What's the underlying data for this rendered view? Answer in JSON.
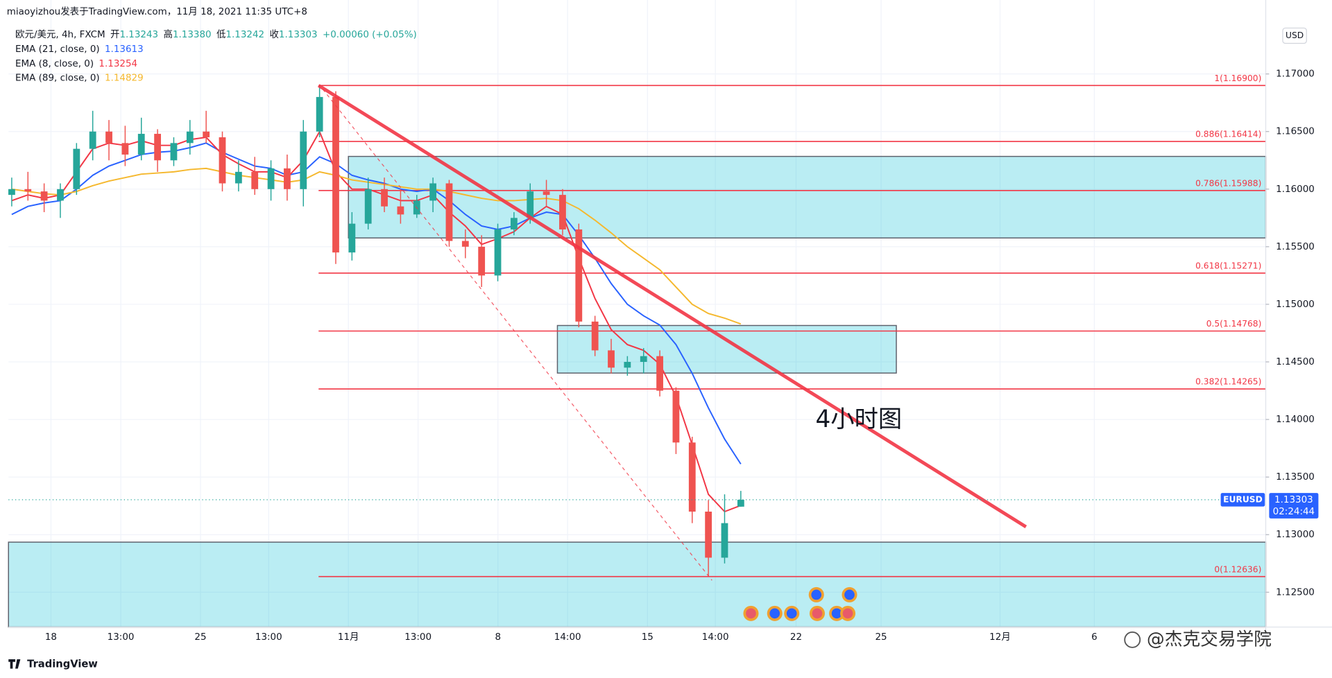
{
  "header": {
    "byline": "miaoyizhou发表于TradingView.com，11月 18, 2021 11:35 UTC+8",
    "symbol": "欧元/美元, 4h, FXCM",
    "ohlc": [
      {
        "label": "开",
        "value": "1.13243"
      },
      {
        "label": "高",
        "value": "1.13380"
      },
      {
        "label": "低",
        "value": "1.13242"
      },
      {
        "label": "收",
        "value": "1.13303"
      }
    ],
    "change": "+0.00060 (+0.05%)",
    "currency": "USD"
  },
  "footer": {
    "brand": "TradingView",
    "watermark": "@杰克交易学院"
  },
  "annotation": "4小时图",
  "chart_data": {
    "type": "candlestick",
    "xlim": [
      -0.2,
      77.4
    ],
    "xticks": [
      {
        "value": 2.42,
        "label": "18"
      },
      {
        "value": 6.73,
        "label": "13:00"
      },
      {
        "value": 11.65,
        "label": "25"
      },
      {
        "value": 15.86,
        "label": "13:00"
      },
      {
        "value": 20.78,
        "label": "11月"
      },
      {
        "value": 25.08,
        "label": "13:00"
      },
      {
        "value": 30.01,
        "label": "8"
      },
      {
        "value": 34.31,
        "label": "14:00"
      },
      {
        "value": 39.24,
        "label": "15"
      },
      {
        "value": 43.43,
        "label": "14:00"
      },
      {
        "value": 48.41,
        "label": "22"
      },
      {
        "value": 53.66,
        "label": "25"
      },
      {
        "value": 61.0,
        "label": "12月"
      },
      {
        "value": 66.82,
        "label": "6"
      }
    ],
    "ylim": [
      1.12198,
      1.17642
    ],
    "yticks": [
      {
        "value": 1.17,
        "label": "1.17000"
      },
      {
        "value": 1.165,
        "label": "1.16500"
      },
      {
        "value": 1.16,
        "label": "1.16000"
      },
      {
        "value": 1.155,
        "label": "1.15500"
      },
      {
        "value": 1.15,
        "label": "1.15000"
      },
      {
        "value": 1.145,
        "label": "1.14500"
      },
      {
        "value": 1.14,
        "label": "1.14000"
      },
      {
        "value": 1.135,
        "label": "1.13500"
      },
      {
        "value": 1.13,
        "label": "1.13000"
      },
      {
        "value": 1.125,
        "label": "1.12500"
      }
    ],
    "grid": true,
    "series": [
      {
        "name": "EURUSD",
        "up_color": "#26a69a",
        "down_color": "#ef5350",
        "open": [
          1.1595,
          1.16,
          1.1598,
          1.159,
          1.16,
          1.1635,
          1.165,
          1.164,
          1.163,
          1.1648,
          1.1625,
          1.164,
          1.165,
          1.1645,
          1.1605,
          1.1615,
          1.16,
          1.1618,
          1.16,
          1.165,
          1.168,
          1.1545,
          1.157,
          1.16,
          1.1585,
          1.1578,
          1.159,
          1.1605,
          1.1555,
          1.155,
          1.1525,
          1.1565,
          1.1575,
          1.1598,
          1.1595,
          1.1565,
          1.1485,
          1.146,
          1.1445,
          1.145,
          1.1455,
          1.1425,
          1.138,
          1.132,
          1.128,
          1.13243
        ],
        "high": [
          1.161,
          1.1615,
          1.1605,
          1.1605,
          1.164,
          1.1668,
          1.166,
          1.1655,
          1.1662,
          1.1652,
          1.1645,
          1.166,
          1.1668,
          1.165,
          1.1625,
          1.1628,
          1.1625,
          1.163,
          1.166,
          1.169,
          1.1685,
          1.158,
          1.161,
          1.161,
          1.16,
          1.1595,
          1.161,
          1.1608,
          1.1565,
          1.156,
          1.157,
          1.158,
          1.1605,
          1.1608,
          1.16,
          1.157,
          1.149,
          1.147,
          1.1455,
          1.1462,
          1.146,
          1.1428,
          1.1385,
          1.133,
          1.1335,
          1.1338
        ],
        "low": [
          1.1585,
          1.159,
          1.158,
          1.1575,
          1.1595,
          1.1625,
          1.1625,
          1.162,
          1.1625,
          1.1615,
          1.162,
          1.163,
          1.164,
          1.1598,
          1.1598,
          1.1595,
          1.159,
          1.159,
          1.1585,
          1.1645,
          1.1535,
          1.1538,
          1.1565,
          1.158,
          1.157,
          1.1575,
          1.158,
          1.155,
          1.154,
          1.1515,
          1.152,
          1.156,
          1.157,
          1.1585,
          1.156,
          1.148,
          1.1455,
          1.144,
          1.1438,
          1.144,
          1.142,
          1.137,
          1.131,
          1.1264,
          1.1275,
          1.13242
        ],
        "close": [
          1.16,
          1.1598,
          1.159,
          1.16,
          1.1635,
          1.165,
          1.164,
          1.163,
          1.1648,
          1.1625,
          1.164,
          1.165,
          1.1645,
          1.1605,
          1.1615,
          1.16,
          1.1618,
          1.16,
          1.165,
          1.168,
          1.1545,
          1.157,
          1.16,
          1.1585,
          1.1578,
          1.159,
          1.1605,
          1.1555,
          1.155,
          1.1525,
          1.1565,
          1.1575,
          1.1598,
          1.1595,
          1.1565,
          1.1485,
          1.146,
          1.1445,
          1.145,
          1.1455,
          1.1425,
          1.138,
          1.132,
          1.128,
          1.131,
          1.13303
        ]
      }
    ],
    "lines": [
      {
        "name": "EMA (21, close, 0)",
        "color": "#2962ff",
        "value_label": "1.13613",
        "values": [
          1.1578,
          1.1585,
          1.1588,
          1.159,
          1.16,
          1.1612,
          1.162,
          1.1625,
          1.163,
          1.1632,
          1.1633,
          1.1636,
          1.164,
          1.1632,
          1.1626,
          1.162,
          1.1618,
          1.1612,
          1.1615,
          1.1628,
          1.1622,
          1.1612,
          1.1608,
          1.1605,
          1.16,
          1.1598,
          1.16,
          1.159,
          1.1578,
          1.1568,
          1.1565,
          1.1568,
          1.1575,
          1.158,
          1.1578,
          1.156,
          1.154,
          1.1518,
          1.15,
          1.149,
          1.1482,
          1.1465,
          1.144,
          1.141,
          1.1383,
          1.13613
        ]
      },
      {
        "name": "EMA (8, close, 0)",
        "color": "#f23645",
        "value_label": "1.13254",
        "values": [
          1.159,
          1.1595,
          1.1592,
          1.1595,
          1.1615,
          1.1635,
          1.164,
          1.1638,
          1.1642,
          1.1638,
          1.1638,
          1.1643,
          1.1645,
          1.163,
          1.1622,
          1.1615,
          1.1615,
          1.161,
          1.1625,
          1.165,
          1.1615,
          1.16,
          1.16,
          1.1595,
          1.159,
          1.159,
          1.1595,
          1.158,
          1.1568,
          1.1552,
          1.1557,
          1.1563,
          1.1575,
          1.1585,
          1.1578,
          1.154,
          1.1505,
          1.1478,
          1.1465,
          1.146,
          1.1448,
          1.142,
          1.1378,
          1.1335,
          1.132,
          1.13254
        ]
      },
      {
        "name": "EMA (89, close, 0)",
        "color": "#f5b82e",
        "value_label": "1.14829",
        "values": [
          1.16,
          1.1598,
          1.1596,
          1.1595,
          1.1598,
          1.1603,
          1.1607,
          1.161,
          1.1613,
          1.1614,
          1.1615,
          1.1617,
          1.1618,
          1.1615,
          1.1612,
          1.161,
          1.1608,
          1.1606,
          1.1608,
          1.1615,
          1.1612,
          1.1608,
          1.1606,
          1.1604,
          1.1602,
          1.16,
          1.16,
          1.1598,
          1.1595,
          1.1592,
          1.159,
          1.159,
          1.1591,
          1.1592,
          1.159,
          1.1583,
          1.1573,
          1.1562,
          1.155,
          1.154,
          1.153,
          1.1515,
          1.15,
          1.1492,
          1.1488,
          1.14829
        ]
      }
    ],
    "fib_levels": [
      {
        "label": "1(1.16900)",
        "value": 1.169
      },
      {
        "label": "0.886(1.16414)",
        "value": 1.16414
      },
      {
        "label": "0.786(1.15988)",
        "value": 1.15988
      },
      {
        "label": "0.618(1.15271)",
        "value": 1.15271
      },
      {
        "label": "0.5(1.14768)",
        "value": 1.14768
      },
      {
        "label": "0.382(1.14265)",
        "value": 1.14265
      },
      {
        "label": "0(1.12636)",
        "value": 1.12636
      }
    ],
    "fib_start": 18.94,
    "zones": [
      {
        "x0": 20.78,
        "x1": 77.4,
        "top": 1.16284,
        "bottom": 1.15576
      },
      {
        "x0": 33.68,
        "x1": 54.6,
        "top": 1.14816,
        "bottom": 1.14403
      },
      {
        "x0": -0.2,
        "x1": 77.4,
        "top": 1.12935,
        "bottom": 1.12198
      }
    ],
    "trendlines": [
      {
        "x": [
          18.94,
          62.6
        ],
        "y": [
          1.169,
          1.13068
        ],
        "color": "#f23645",
        "dashed": false
      },
      {
        "x": [
          19.2,
          43.22
        ],
        "y": [
          1.16867,
          1.12603
        ],
        "color": "#f23645",
        "dashed": true
      }
    ],
    "price_tag": {
      "symbol": "EURUSD",
      "price": "1.13303",
      "countdown": "02:24:44",
      "color": "#2962ff"
    }
  }
}
